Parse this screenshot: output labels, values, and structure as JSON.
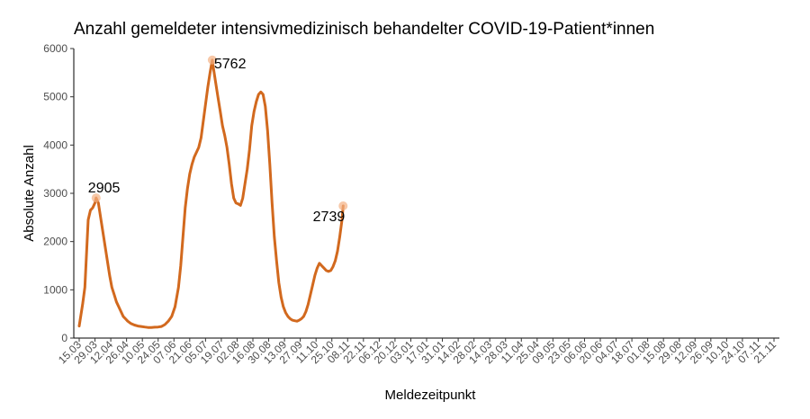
{
  "chart_data": {
    "type": "line",
    "title": "Anzahl gemeldeter intensivmedizinisch behandelter COVID-19-Patient*innen",
    "xlabel": "Meldezeitpunkt",
    "ylabel": "Absolute Anzahl",
    "ylim": [
      0,
      6000
    ],
    "yticks": [
      0,
      1000,
      2000,
      3000,
      4000,
      5000,
      6000
    ],
    "grid": false,
    "legend": "none",
    "color": "#d2691e",
    "xticks": [
      "15.03",
      "29.03",
      "12.04",
      "26.04",
      "10.05",
      "24.05",
      "07.06",
      "21.06",
      "05.07",
      "19.07",
      "02.08",
      "16.08",
      "30.08",
      "13.09",
      "27.09",
      "11.10",
      "25.10",
      "08.11",
      "22.11",
      "06.12",
      "20.12",
      "03.01",
      "17.01",
      "31.01",
      "14.02",
      "28.02",
      "14.03",
      "28.03",
      "11.04",
      "25.04",
      "09.05",
      "23.05",
      "06.06",
      "20.06",
      "04.07",
      "18.07",
      "01.08",
      "15.08",
      "29.08",
      "12.09",
      "26.09",
      "10.10",
      "24.10",
      "07.11",
      "21.11"
    ],
    "series": [
      {
        "values": [
          [
            0,
            250
          ],
          [
            3,
            700
          ],
          [
            5,
            1050
          ],
          [
            7,
            2000
          ],
          [
            8,
            2450
          ],
          [
            10,
            2650
          ],
          [
            12,
            2700
          ],
          [
            14,
            2800
          ],
          [
            15,
            2905
          ],
          [
            17,
            2800
          ],
          [
            19,
            2500
          ],
          [
            21,
            2200
          ],
          [
            23,
            1900
          ],
          [
            25,
            1600
          ],
          [
            27,
            1300
          ],
          [
            29,
            1050
          ],
          [
            31,
            900
          ],
          [
            33,
            750
          ],
          [
            35,
            650
          ],
          [
            37,
            550
          ],
          [
            39,
            450
          ],
          [
            41,
            400
          ],
          [
            43,
            350
          ],
          [
            46,
            300
          ],
          [
            49,
            270
          ],
          [
            52,
            250
          ],
          [
            55,
            240
          ],
          [
            58,
            230
          ],
          [
            61,
            220
          ],
          [
            64,
            220
          ],
          [
            67,
            225
          ],
          [
            70,
            230
          ],
          [
            73,
            240
          ],
          [
            76,
            280
          ],
          [
            79,
            350
          ],
          [
            82,
            450
          ],
          [
            85,
            650
          ],
          [
            88,
            1050
          ],
          [
            90,
            1500
          ],
          [
            92,
            2100
          ],
          [
            94,
            2700
          ],
          [
            96,
            3100
          ],
          [
            98,
            3400
          ],
          [
            100,
            3600
          ],
          [
            102,
            3750
          ],
          [
            104,
            3850
          ],
          [
            106,
            3950
          ],
          [
            108,
            4150
          ],
          [
            110,
            4500
          ],
          [
            112,
            4850
          ],
          [
            114,
            5200
          ],
          [
            116,
            5500
          ],
          [
            118,
            5762
          ],
          [
            119,
            5600
          ],
          [
            121,
            5300
          ],
          [
            123,
            5000
          ],
          [
            125,
            4700
          ],
          [
            127,
            4400
          ],
          [
            129,
            4200
          ],
          [
            131,
            3950
          ],
          [
            133,
            3600
          ],
          [
            135,
            3200
          ],
          [
            137,
            2900
          ],
          [
            139,
            2800
          ],
          [
            141,
            2780
          ],
          [
            143,
            2750
          ],
          [
            145,
            2900
          ],
          [
            147,
            3200
          ],
          [
            149,
            3500
          ],
          [
            151,
            3900
          ],
          [
            153,
            4400
          ],
          [
            155,
            4700
          ],
          [
            157,
            4900
          ],
          [
            159,
            5050
          ],
          [
            161,
            5100
          ],
          [
            163,
            5050
          ],
          [
            165,
            4800
          ],
          [
            167,
            4300
          ],
          [
            169,
            3600
          ],
          [
            171,
            2800
          ],
          [
            173,
            2100
          ],
          [
            175,
            1600
          ],
          [
            177,
            1150
          ],
          [
            179,
            850
          ],
          [
            181,
            650
          ],
          [
            183,
            530
          ],
          [
            185,
            450
          ],
          [
            187,
            400
          ],
          [
            189,
            370
          ],
          [
            191,
            360
          ],
          [
            193,
            350
          ],
          [
            195,
            370
          ],
          [
            197,
            400
          ],
          [
            199,
            450
          ],
          [
            201,
            550
          ],
          [
            203,
            700
          ],
          [
            205,
            900
          ],
          [
            207,
            1100
          ],
          [
            209,
            1300
          ],
          [
            211,
            1450
          ],
          [
            213,
            1550
          ],
          [
            215,
            1500
          ],
          [
            217,
            1450
          ],
          [
            219,
            1400
          ],
          [
            221,
            1380
          ],
          [
            223,
            1400
          ],
          [
            225,
            1480
          ],
          [
            227,
            1600
          ],
          [
            229,
            1800
          ],
          [
            231,
            2100
          ],
          [
            233,
            2450
          ],
          [
            234,
            2739
          ]
        ]
      }
    ],
    "annotations": [
      {
        "x": 15,
        "y": 2905,
        "text": "2905"
      },
      {
        "x": 118,
        "y": 5762,
        "text": "5762"
      },
      {
        "x": 234,
        "y": 2739,
        "text": "2739"
      }
    ]
  }
}
